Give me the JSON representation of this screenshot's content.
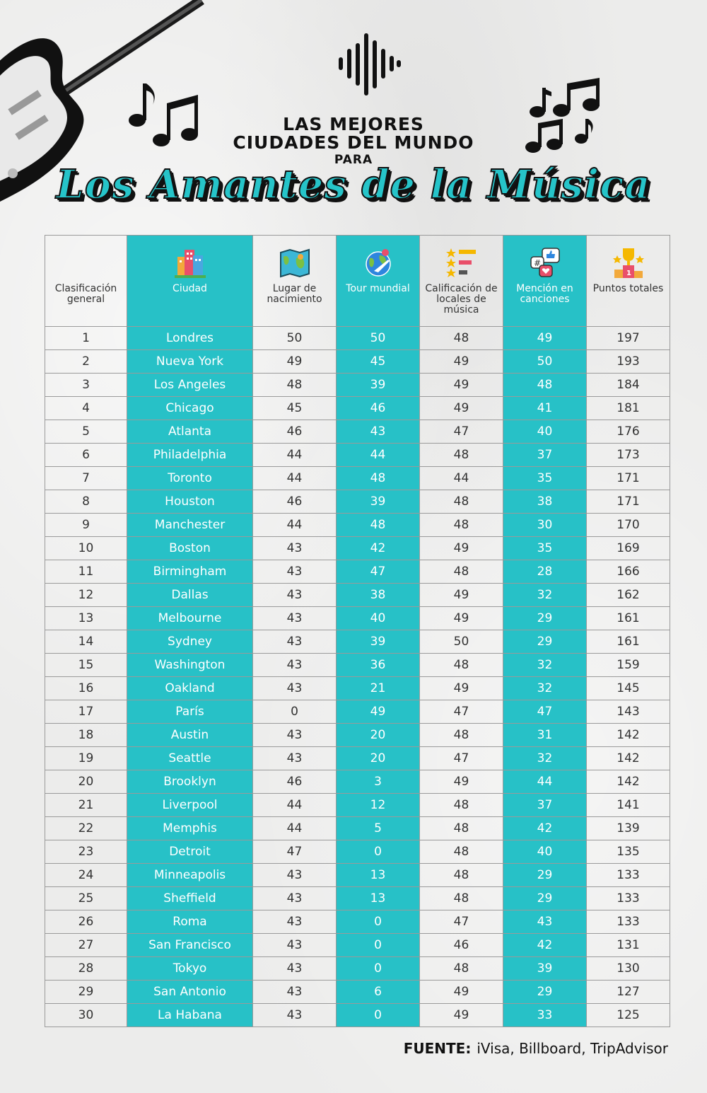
{
  "title": {
    "line1": "LAS MEJORES",
    "line2": "CIUDADES DEL MUNDO",
    "line3": "PARA",
    "script": "Los Amantes de la Música"
  },
  "colors": {
    "accent": "#27c1c7",
    "background": "#ececeb",
    "text": "#222222"
  },
  "icons": [
    "guitar-icon",
    "soundwave-icon",
    "music-notes-icon",
    "buildings-icon",
    "map-icon",
    "globe-plane-icon",
    "star-rating-icon",
    "social-mention-icon",
    "trophy-podium-icon"
  ],
  "headers": [
    {
      "label": "Clasificación general",
      "icon": ""
    },
    {
      "label": "Ciudad",
      "icon": "buildings-icon"
    },
    {
      "label": "Lugar de nacimiento",
      "icon": "map-icon"
    },
    {
      "label": "Tour mundial",
      "icon": "globe-plane-icon"
    },
    {
      "label": "Calificación de locales de música",
      "icon": "star-rating-icon"
    },
    {
      "label": "Mención en canciones",
      "icon": "social-mention-icon"
    },
    {
      "label": "Puntos totales",
      "icon": "trophy-podium-icon"
    }
  ],
  "rows": [
    [
      "1",
      "Londres",
      "50",
      "50",
      "48",
      "49",
      "197"
    ],
    [
      "2",
      "Nueva York",
      "49",
      "45",
      "49",
      "50",
      "193"
    ],
    [
      "3",
      "Los Angeles",
      "48",
      "39",
      "49",
      "48",
      "184"
    ],
    [
      "4",
      "Chicago",
      "45",
      "46",
      "49",
      "41",
      "181"
    ],
    [
      "5",
      "Atlanta",
      "46",
      "43",
      "47",
      "40",
      "176"
    ],
    [
      "6",
      "Philadelphia",
      "44",
      "44",
      "48",
      "37",
      "173"
    ],
    [
      "7",
      "Toronto",
      "44",
      "48",
      "44",
      "35",
      "171"
    ],
    [
      "8",
      "Houston",
      "46",
      "39",
      "48",
      "38",
      "171"
    ],
    [
      "9",
      "Manchester",
      "44",
      "48",
      "48",
      "30",
      "170"
    ],
    [
      "10",
      "Boston",
      "43",
      "42",
      "49",
      "35",
      "169"
    ],
    [
      "11",
      "Birmingham",
      "43",
      "47",
      "48",
      "28",
      "166"
    ],
    [
      "12",
      "Dallas",
      "43",
      "38",
      "49",
      "32",
      "162"
    ],
    [
      "13",
      "Melbourne",
      "43",
      "40",
      "49",
      "29",
      "161"
    ],
    [
      "14",
      "Sydney",
      "43",
      "39",
      "50",
      "29",
      "161"
    ],
    [
      "15",
      "Washington",
      "43",
      "36",
      "48",
      "32",
      "159"
    ],
    [
      "16",
      "Oakland",
      "43",
      "21",
      "49",
      "32",
      "145"
    ],
    [
      "17",
      "París",
      "0",
      "49",
      "47",
      "47",
      "143"
    ],
    [
      "18",
      "Austin",
      "43",
      "20",
      "48",
      "31",
      "142"
    ],
    [
      "19",
      "Seattle",
      "43",
      "20",
      "47",
      "32",
      "142"
    ],
    [
      "20",
      "Brooklyn",
      "46",
      "3",
      "49",
      "44",
      "142"
    ],
    [
      "21",
      "Liverpool",
      "44",
      "12",
      "48",
      "37",
      "141"
    ],
    [
      "22",
      "Memphis",
      "44",
      "5",
      "48",
      "42",
      "139"
    ],
    [
      "23",
      "Detroit",
      "47",
      "0",
      "48",
      "40",
      "135"
    ],
    [
      "24",
      "Minneapolis",
      "43",
      "13",
      "48",
      "29",
      "133"
    ],
    [
      "25",
      "Sheffield",
      "43",
      "13",
      "48",
      "29",
      "133"
    ],
    [
      "26",
      "Roma",
      "43",
      "0",
      "47",
      "43",
      "133"
    ],
    [
      "27",
      "San Francisco",
      "43",
      "0",
      "46",
      "42",
      "131"
    ],
    [
      "28",
      "Tokyo",
      "43",
      "0",
      "48",
      "39",
      "130"
    ],
    [
      "29",
      "San Antonio",
      "43",
      "6",
      "49",
      "29",
      "127"
    ],
    [
      "30",
      "La Habana",
      "43",
      "0",
      "49",
      "33",
      "125"
    ]
  ],
  "footer": {
    "label": "FUENTE:",
    "sources": "iVisa, Billboard, TripAdvisor"
  }
}
